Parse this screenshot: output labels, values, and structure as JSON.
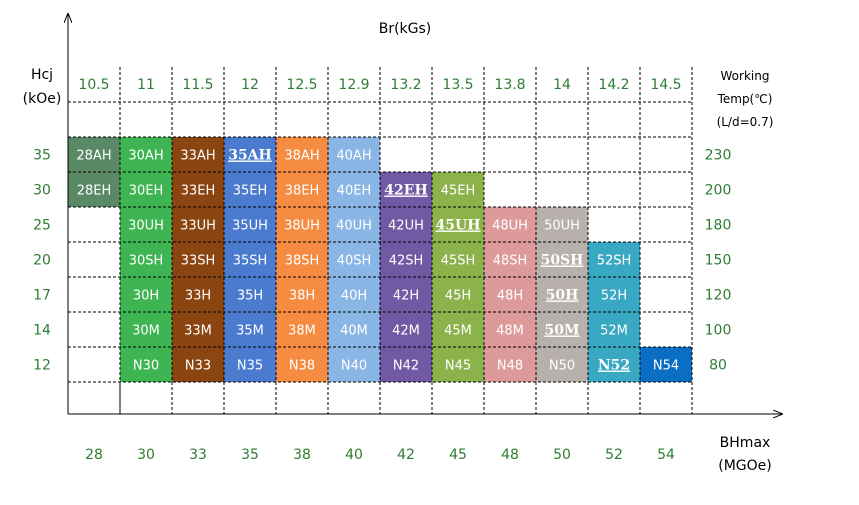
{
  "chart_data": {
    "type": "table",
    "top_axis_label": "Br(kGs)",
    "left_axis_label_line1": "Hcj",
    "left_axis_label_line2": "(kOe)",
    "right_header_line1": "Working",
    "right_header_line2": "Temp(℃)",
    "right_header_line3": "(L/d=0.7)",
    "bottom_axis_label_line1": "BHmax",
    "bottom_axis_label_line2": "(MGOe)",
    "br_values": [
      "10.5",
      "11",
      "11.5",
      "12",
      "12.5",
      "12.9",
      "13.2",
      "13.5",
      "13.8",
      "14",
      "14.2",
      "14.5"
    ],
    "bhmax_values": [
      "28",
      "30",
      "33",
      "35",
      "38",
      "40",
      "42",
      "45",
      "48",
      "50",
      "52",
      "54"
    ],
    "hcj_values": [
      "35",
      "30",
      "25",
      "20",
      "17",
      "14",
      "12"
    ],
    "working_temp_values": [
      "230",
      "200",
      "180",
      "150",
      "120",
      "100",
      "80"
    ],
    "column_colors": [
      "#5a8a65",
      "#3eb452",
      "#8b4511",
      "#4a7bcf",
      "#f68c42",
      "#8ab6e6",
      "#7159a4",
      "#8cb24b",
      "#dc9a9a",
      "#b8b0ac",
      "#39a8c3",
      "#0a6ec4"
    ],
    "grades": [
      [
        "28AH",
        "30AH",
        "33AH",
        "35AH",
        "38AH",
        "40AH",
        "",
        "",
        "",
        "",
        "",
        ""
      ],
      [
        "28EH",
        "30EH",
        "33EH",
        "35EH",
        "38EH",
        "40EH",
        "42EH",
        "45EH",
        "",
        "",
        "",
        ""
      ],
      [
        "",
        "30UH",
        "33UH",
        "35UH",
        "38UH",
        "40UH",
        "42UH",
        "45UH",
        "48UH",
        "50UH",
        "",
        ""
      ],
      [
        "",
        "30SH",
        "33SH",
        "35SH",
        "38SH",
        "40SH",
        "42SH",
        "45SH",
        "48SH",
        "50SH",
        "52SH",
        ""
      ],
      [
        "",
        "30H",
        "33H",
        "35H",
        "38H",
        "40H",
        "42H",
        "45H",
        "48H",
        "50H",
        "52H",
        ""
      ],
      [
        "",
        "30M",
        "33M",
        "35M",
        "38M",
        "40M",
        "42M",
        "45M",
        "48M",
        "50M",
        "52M",
        ""
      ],
      [
        "",
        "N30",
        "N33",
        "N35",
        "N38",
        "N40",
        "N42",
        "N45",
        "N48",
        "N50",
        "N52",
        "N54"
      ]
    ],
    "highlighted": [
      "35AH",
      "42EH",
      "45UH",
      "50SH",
      "50H",
      "50M",
      "N52"
    ]
  }
}
